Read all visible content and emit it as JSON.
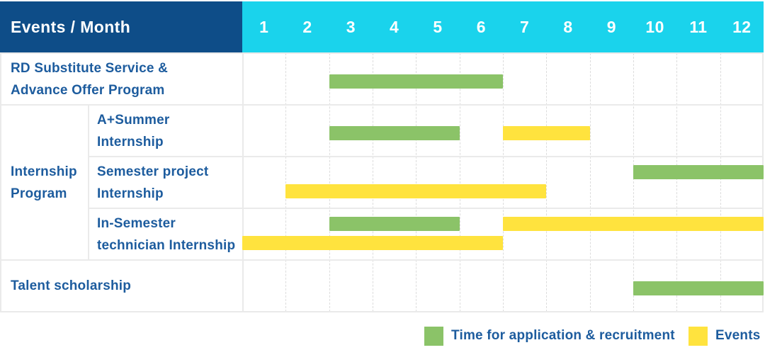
{
  "header": {
    "label": "Events / Month",
    "months": [
      "1",
      "2",
      "3",
      "4",
      "5",
      "6",
      "7",
      "8",
      "9",
      "10",
      "11",
      "12"
    ]
  },
  "colors": {
    "header_navy": "#0E4D88",
    "header_cyan": "#1AD3EC",
    "recruitment_green": "#8BC368",
    "event_yellow": "#FFE33E",
    "label_blue": "#1D5C9E",
    "grid_line": "#EAEAEA"
  },
  "legend": [
    {
      "series": "recruitment",
      "label": "Time for application & recruitment"
    },
    {
      "series": "event",
      "label": "Events"
    }
  ],
  "chart_data": {
    "type": "gantt",
    "x_unit": "month",
    "x_labels": [
      "1",
      "2",
      "3",
      "4",
      "5",
      "6",
      "7",
      "8",
      "9",
      "10",
      "11",
      "12"
    ],
    "x_range": [
      1,
      12
    ],
    "series": [
      {
        "key": "recruitment",
        "name": "Time for application & recruitment",
        "color": "#8BC368"
      },
      {
        "key": "event",
        "name": "Events",
        "color": "#FFE33E"
      }
    ],
    "groups": [
      {
        "label_lines": [
          "Internship",
          "Program"
        ],
        "start_row": 1,
        "end_row": 3
      }
    ],
    "tasks": [
      {
        "label_lines": [
          "RD Substitute Service &",
          "Advance Offer Program"
        ],
        "group": "",
        "bars": [
          {
            "series": "recruitment",
            "start_month": 3,
            "end_month": 6,
            "lane": "center"
          }
        ]
      },
      {
        "label_lines": [
          "A+Summer",
          "Internship"
        ],
        "group": "Internship Program",
        "bars": [
          {
            "series": "recruitment",
            "start_month": 3,
            "end_month": 5,
            "lane": "center"
          },
          {
            "series": "event",
            "start_month": 7,
            "end_month": 8,
            "lane": "center"
          }
        ]
      },
      {
        "label_lines": [
          "Semester project",
          "Internship"
        ],
        "group": "Internship Program",
        "bars": [
          {
            "series": "recruitment",
            "start_month": 10,
            "end_month": 12,
            "lane": "upper"
          },
          {
            "series": "event",
            "start_month": 2,
            "end_month": 7,
            "lane": "lower"
          }
        ]
      },
      {
        "label_lines": [
          "In-Semester",
          "technician Internship"
        ],
        "group": "Internship Program",
        "bars": [
          {
            "series": "recruitment",
            "start_month": 3,
            "end_month": 5,
            "lane": "upper"
          },
          {
            "series": "event",
            "start_month": 7,
            "end_month": 12,
            "lane": "upper"
          },
          {
            "series": "event",
            "start_month": 1,
            "end_month": 6,
            "lane": "lower"
          }
        ]
      },
      {
        "label_lines": [
          "Talent scholarship"
        ],
        "group": "",
        "bars": [
          {
            "series": "recruitment",
            "start_month": 10,
            "end_month": 12,
            "lane": "center"
          }
        ]
      }
    ]
  }
}
